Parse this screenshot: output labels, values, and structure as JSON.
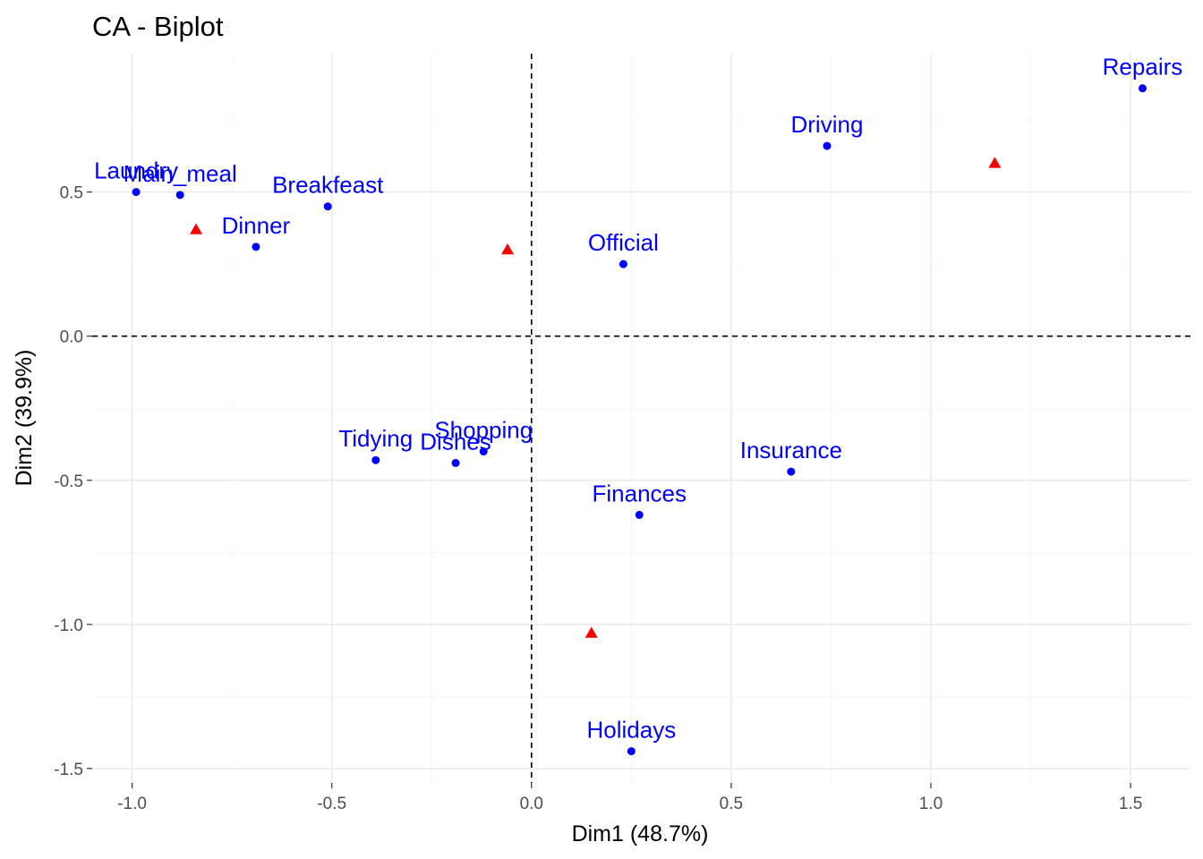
{
  "chart_data": {
    "type": "scatter",
    "title": "CA - Biplot",
    "xlabel": "Dim1 (48.7%)",
    "ylabel": "Dim2 (39.9%)",
    "xlim": [
      -1.1,
      1.65
    ],
    "ylim": [
      -1.55,
      0.98
    ],
    "x_ticks": [
      -1.0,
      -0.5,
      0.0,
      0.5,
      1.0,
      1.5
    ],
    "x_tick_labels": [
      "-1.0",
      "-0.5",
      "0.0",
      "0.5",
      "1.0",
      "1.5"
    ],
    "y_ticks": [
      -1.5,
      -1.0,
      -0.5,
      0.0,
      0.5
    ],
    "y_tick_labels": [
      "-1.5",
      "-1.0",
      "-0.5",
      "0.0",
      "0.5"
    ],
    "grid": true,
    "reference_lines": {
      "x": 0,
      "y": 0,
      "style": "dashed"
    },
    "row_points": {
      "color": "#0000ff",
      "marker": "circle",
      "points": [
        {
          "label": "Laundry",
          "x": -0.99,
          "y": 0.5
        },
        {
          "label": "Main_meal",
          "x": -0.88,
          "y": 0.49
        },
        {
          "label": "Dinner",
          "x": -0.69,
          "y": 0.31
        },
        {
          "label": "Breakfeast",
          "x": -0.51,
          "y": 0.45
        },
        {
          "label": "Tidying",
          "x": -0.39,
          "y": -0.43
        },
        {
          "label": "Dishes",
          "x": -0.19,
          "y": -0.44
        },
        {
          "label": "Shopping",
          "x": -0.12,
          "y": -0.4
        },
        {
          "label": "Official",
          "x": 0.23,
          "y": 0.25
        },
        {
          "label": "Driving",
          "x": 0.74,
          "y": 0.66
        },
        {
          "label": "Finances",
          "x": 0.27,
          "y": -0.62
        },
        {
          "label": "Insurance",
          "x": 0.65,
          "y": -0.47
        },
        {
          "label": "Repairs",
          "x": 1.53,
          "y": 0.86
        },
        {
          "label": "Holidays",
          "x": 0.25,
          "y": -1.44
        }
      ]
    },
    "column_points": {
      "color": "#ff0000",
      "marker": "triangle",
      "points": [
        {
          "x": -0.84,
          "y": 0.37
        },
        {
          "x": -0.06,
          "y": 0.3
        },
        {
          "x": 0.15,
          "y": -1.03
        },
        {
          "x": 1.16,
          "y": 0.6
        }
      ]
    }
  }
}
